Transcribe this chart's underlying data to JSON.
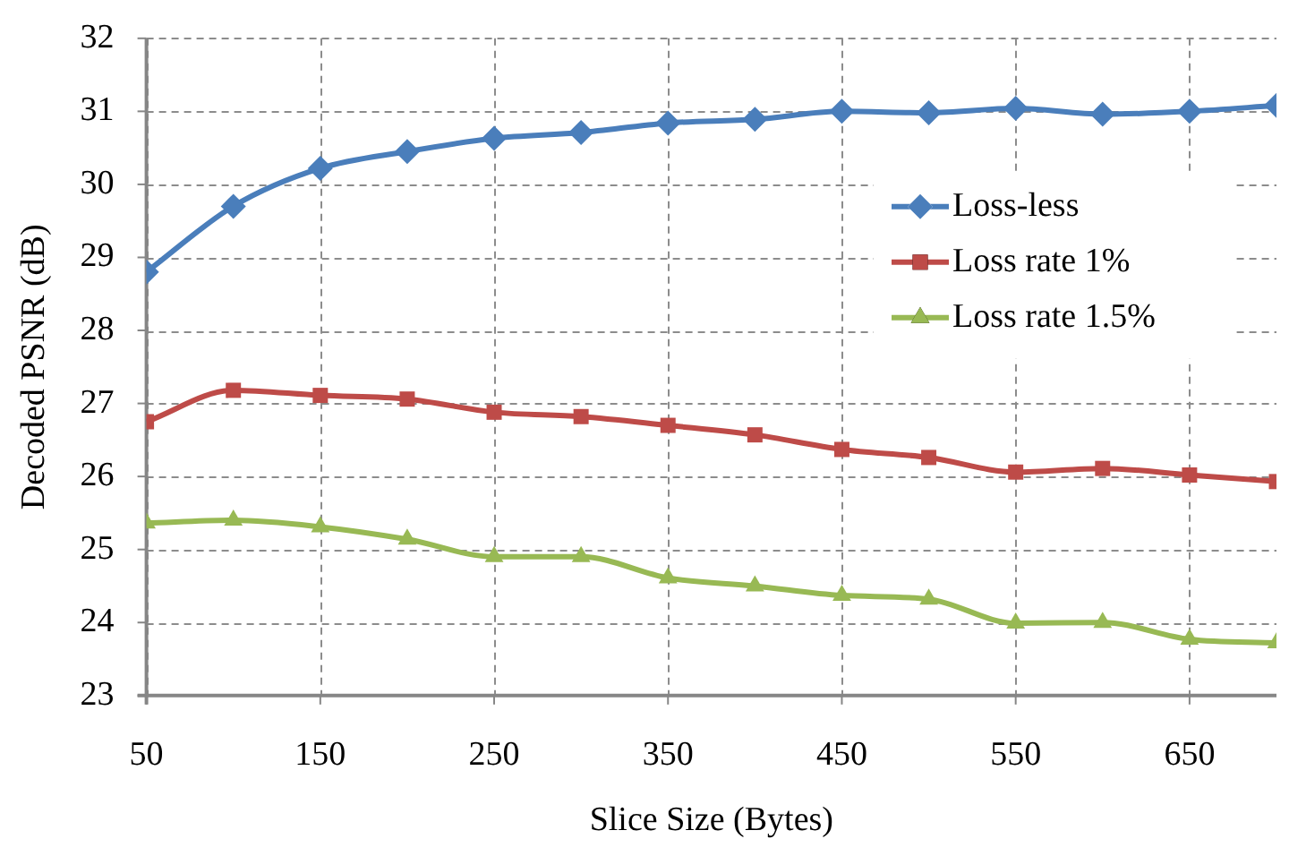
{
  "chart_data": {
    "type": "line",
    "xlabel": "Slice Size (Bytes)",
    "ylabel": "Decoded PSNR (dB)",
    "x": [
      50,
      100,
      150,
      200,
      250,
      300,
      350,
      400,
      450,
      500,
      550,
      600,
      650,
      700
    ],
    "xlim": [
      50,
      700
    ],
    "xticks": [
      50,
      150,
      250,
      350,
      450,
      550,
      650
    ],
    "ylim": [
      23,
      32
    ],
    "yticks": [
      23,
      24,
      25,
      26,
      27,
      28,
      29,
      30,
      31,
      32
    ],
    "grid": true,
    "legend": "right",
    "line_style": "solid",
    "series": [
      {
        "name": "Loss-less",
        "color": "#4a7ebb",
        "marker": "diamond",
        "values": [
          28.8,
          29.7,
          30.22,
          30.45,
          30.63,
          30.71,
          30.84,
          30.89,
          31.0,
          30.98,
          31.04,
          30.96,
          31.0,
          31.08
        ]
      },
      {
        "name": "Loss rate 1%",
        "color": "#be4b48",
        "marker": "square",
        "values": [
          26.75,
          27.18,
          27.11,
          27.06,
          26.88,
          26.82,
          26.7,
          26.57,
          26.37,
          26.26,
          26.06,
          26.11,
          26.02,
          25.93
        ]
      },
      {
        "name": "Loss rate 1.5%",
        "color": "#98b954",
        "marker": "triangle",
        "values": [
          25.36,
          25.4,
          25.31,
          25.14,
          24.9,
          24.9,
          24.61,
          24.5,
          24.37,
          24.32,
          23.99,
          24.0,
          23.77,
          23.72
        ]
      }
    ]
  }
}
